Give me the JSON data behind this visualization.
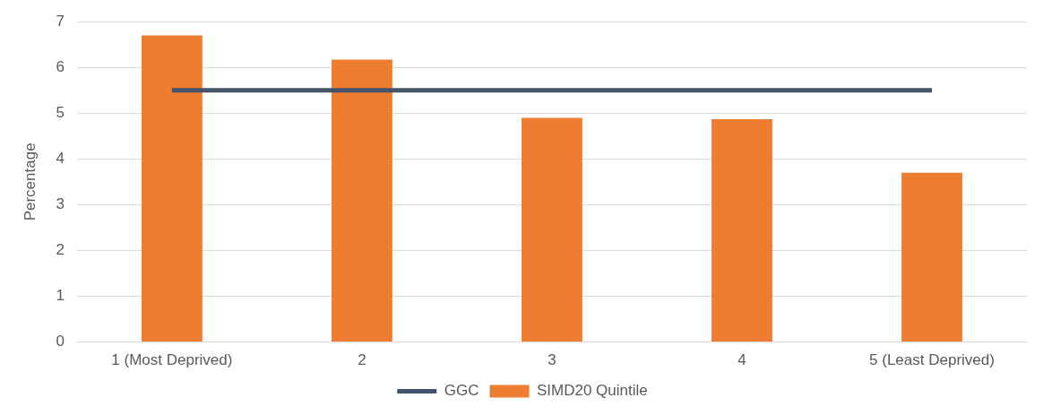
{
  "chart_data": {
    "type": "bar",
    "ylabel": "Percentage",
    "categories": [
      "1 (Most Deprived)",
      "2",
      "3",
      "4",
      "5 (Least Deprived)"
    ],
    "series": [
      {
        "name": "SIMD20 Quintile",
        "color": "#ed7d31",
        "values": [
          6.7,
          6.17,
          4.9,
          4.87,
          3.7
        ]
      },
      {
        "name": "GGC",
        "type": "line",
        "color": "#44546a",
        "values": [
          5.5,
          5.5,
          5.5,
          5.5,
          5.5
        ]
      }
    ],
    "ylim": [
      0,
      7
    ],
    "yticks": [
      0,
      1,
      2,
      3,
      4,
      5,
      6,
      7
    ],
    "grid": "y",
    "legend": "bottom",
    "marker": "none"
  }
}
